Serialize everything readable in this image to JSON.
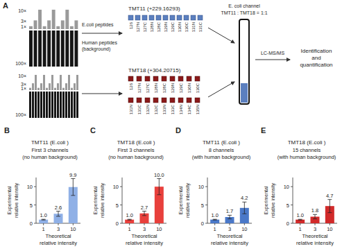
{
  "diagram": {
    "panel_label": "A",
    "ecoli_levels": [
      "10×",
      "3×",
      "1×"
    ],
    "human_level": "100×",
    "ecoli_label": "E.coli peptides",
    "human_label": "Human peptides\n(background)",
    "tmt11": {
      "label": "TMT11 (+229.16293)",
      "channels": [
        "126",
        "127N",
        "127C",
        "128N",
        "128C",
        "129N",
        "129C",
        "130N",
        "130C",
        "131N",
        "131C"
      ]
    },
    "tmt18": {
      "label": "TMT18 (+304.20715)",
      "channels": [
        "126",
        "127N",
        "127C",
        "128N",
        "128C",
        "129N",
        "129C",
        "130N",
        "130C",
        "131N",
        "131C",
        "132N",
        "132C",
        "133N",
        "133C",
        "134N",
        "134C",
        "135N"
      ]
    },
    "mix_label": "E. coli channel\nTMT11 : TMT18 = 1:1",
    "method": "LC-MS/MS",
    "result": "Identification\nand\nquantification"
  },
  "chart_data": [
    {
      "type": "bar",
      "panel_label": "B",
      "title": "TMT11 (E.coli )",
      "subtitle": "First 3 channels\n(no human background)",
      "xlabel": "Theoretical\nrelative intensity",
      "ylabel": "Experimental\nrelative intensity",
      "categories": [
        "1",
        "3",
        "10"
      ],
      "values": [
        1.0,
        2.6,
        9.9
      ],
      "value_labels": [
        "1.0",
        "2.6",
        "9.9"
      ],
      "errors": [
        0.1,
        0.7,
        2.3
      ],
      "color": "#8fb0e6",
      "ylim": [
        0,
        12.5
      ],
      "yticks": [
        0,
        5,
        10
      ],
      "data_labels": true
    },
    {
      "type": "bar",
      "panel_label": "C",
      "title": "TMT18 (E.coli )",
      "subtitle": "First 3 channels\n(no human background)",
      "xlabel": "Theoretical\nrelative intensity",
      "ylabel": "Experimental\nrelative intensity",
      "categories": [
        "1",
        "3",
        "10"
      ],
      "values": [
        1.0,
        2.7,
        10.0
      ],
      "value_labels": [
        "1.0",
        "2.7",
        "10.0"
      ],
      "errors": [
        0.1,
        0.6,
        2.2
      ],
      "color": "#e8403c",
      "ylim": [
        0,
        12.5
      ],
      "yticks": [
        0,
        5,
        10
      ],
      "data_labels": true
    },
    {
      "type": "bar",
      "panel_label": "D",
      "title": "TMT11 (E.coli )",
      "subtitle": "8 channels\n(with human background)",
      "xlabel": "Theoretical\nrelative intensity",
      "ylabel": "Experimental\nrelative intensity",
      "categories": [
        "1",
        "3",
        "10"
      ],
      "values": [
        1.0,
        1.7,
        4.2
      ],
      "value_labels": [
        "1.0",
        "1.7",
        "4.2"
      ],
      "errors": [
        0.1,
        0.5,
        1.6
      ],
      "color": "#4a78c8",
      "ylim": [
        0,
        12.5
      ],
      "yticks": [
        0,
        5,
        10
      ],
      "data_labels": true
    },
    {
      "type": "bar",
      "panel_label": "E",
      "title": "TMT18 (E.coli )",
      "subtitle": "15 channels\n(with human background)",
      "xlabel": "Theoretical\nrelative intensity",
      "ylabel": "Experimental\nrelative intensity",
      "categories": [
        "1",
        "3",
        "10"
      ],
      "values": [
        1.0,
        1.8,
        4.7
      ],
      "value_labels": [
        "1.0",
        "1.8",
        "4.7"
      ],
      "errors": [
        0.1,
        0.6,
        1.8
      ],
      "color": "#d12a2a",
      "ylim": [
        0,
        12.5
      ],
      "yticks": [
        0,
        5,
        10
      ],
      "data_labels": true
    }
  ]
}
